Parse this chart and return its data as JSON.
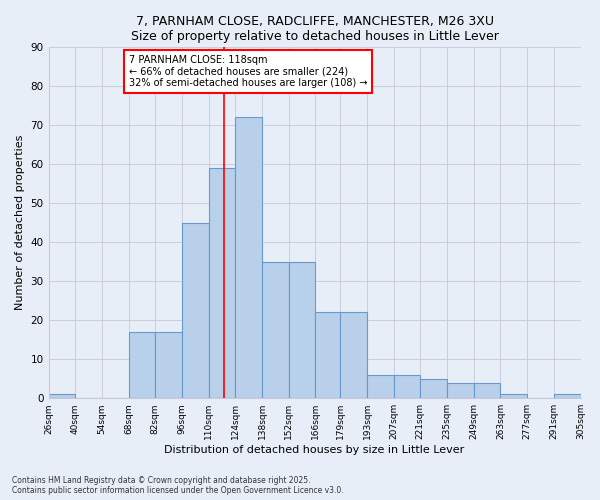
{
  "title": "7, PARNHAM CLOSE, RADCLIFFE, MANCHESTER, M26 3XU",
  "subtitle": "Size of property relative to detached houses in Little Lever",
  "xlabel": "Distribution of detached houses by size in Little Lever",
  "ylabel": "Number of detached properties",
  "bar_color": "#b8d0ea",
  "bar_edge_color": "#6699cc",
  "bin_edges": [
    26,
    40,
    54,
    68,
    82,
    96,
    110,
    124,
    138,
    152,
    166,
    179,
    193,
    207,
    221,
    235,
    249,
    263,
    277,
    291,
    305
  ],
  "bar_heights": [
    1,
    0,
    0,
    17,
    17,
    45,
    59,
    72,
    35,
    35,
    22,
    22,
    6,
    6,
    5,
    4,
    4,
    1,
    0,
    1
  ],
  "vline_x": 118,
  "vline_color": "red",
  "annotation_text": "7 PARNHAM CLOSE: 118sqm\n← 66% of detached houses are smaller (224)\n32% of semi-detached houses are larger (108) →",
  "ylim": [
    0,
    90
  ],
  "yticks": [
    0,
    10,
    20,
    30,
    40,
    50,
    60,
    70,
    80,
    90
  ],
  "background_color": "#e8eef8",
  "grid_color": "#c8c8d8",
  "footnote1": "Contains HM Land Registry data © Crown copyright and database right 2025.",
  "footnote2": "Contains public sector information licensed under the Open Government Licence v3.0."
}
